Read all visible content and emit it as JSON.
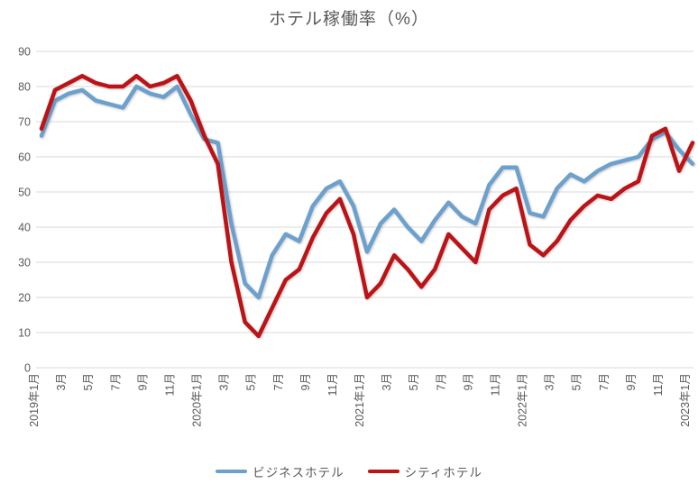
{
  "chart_data": {
    "type": "line",
    "title": "ホテル稼働率（%）",
    "ylim": [
      0,
      90
    ],
    "yticks": [
      0,
      10,
      20,
      30,
      40,
      50,
      60,
      70,
      80,
      90
    ],
    "grid": "horizontal",
    "legend_position": "bottom",
    "n_points": 49,
    "label_every": 2,
    "x_tick_labels": [
      "2019年1月",
      "3月",
      "5月",
      "7月",
      "9月",
      "11月",
      "2020年1月",
      "3月",
      "5月",
      "7月",
      "9月",
      "11月",
      "2021年1月",
      "3月",
      "5月",
      "7月",
      "9月",
      "11月",
      "2022年1月",
      "3月",
      "5月",
      "7月",
      "9月",
      "11月",
      "2023年1月"
    ],
    "series": [
      {
        "name": "ビジネスホテル",
        "color": "#6CA0CD",
        "values": [
          66,
          76,
          78,
          79,
          76,
          75,
          74,
          80,
          78,
          77,
          80,
          72,
          65,
          64,
          41,
          24,
          20,
          32,
          38,
          36,
          46,
          51,
          53,
          46,
          33,
          41,
          45,
          40,
          36,
          42,
          47,
          43,
          41,
          52,
          57,
          57,
          44,
          43,
          51,
          55,
          53,
          56,
          58,
          59,
          60,
          65,
          67,
          62,
          58
        ]
      },
      {
        "name": "シティホテル",
        "color": "#BC1316",
        "values": [
          68,
          79,
          81,
          83,
          81,
          80,
          80,
          83,
          80,
          81,
          83,
          76,
          66,
          58,
          30,
          13,
          9,
          17,
          25,
          28,
          37,
          44,
          48,
          38,
          20,
          24,
          32,
          28,
          23,
          28,
          38,
          34,
          30,
          45,
          49,
          51,
          35,
          32,
          36,
          42,
          46,
          49,
          48,
          51,
          53,
          66,
          68,
          56,
          64
        ]
      }
    ]
  }
}
